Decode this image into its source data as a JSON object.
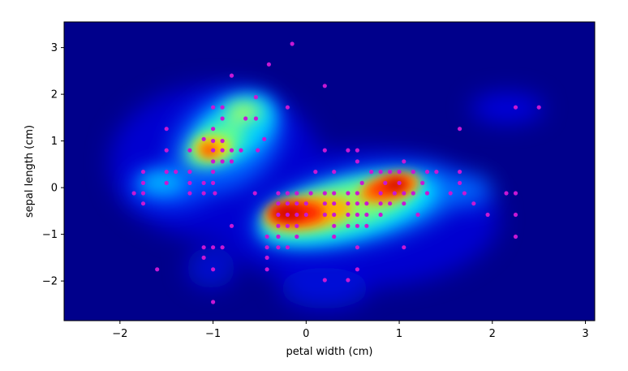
{
  "chart_data": {
    "type": "scatter",
    "title": "",
    "xlabel": "petal width (cm)",
    "ylabel": "sepal length (cm)",
    "xlim": [
      -2.6,
      3.1
    ],
    "ylim": [
      -2.85,
      3.55
    ],
    "xticks": [
      -2,
      -1,
      0,
      1,
      2,
      3
    ],
    "yticks": [
      -2,
      -1,
      0,
      1,
      2,
      3
    ],
    "grid": false,
    "background": "density heatmap (jet colormap)",
    "point_color": "#c718d4",
    "points": [
      [
        -0.15,
        3.08
      ],
      [
        -0.4,
        2.64
      ],
      [
        -0.8,
        2.4
      ],
      [
        0.2,
        2.18
      ],
      [
        -0.54,
        1.94
      ],
      [
        -0.2,
        1.72
      ],
      [
        -1.0,
        1.72
      ],
      [
        -0.9,
        1.72
      ],
      [
        -1.5,
        1.26
      ],
      [
        -1.0,
        1.26
      ],
      [
        -0.65,
        1.48
      ],
      [
        -0.54,
        1.48
      ],
      [
        -0.9,
        1.48
      ],
      [
        -1.0,
        1.0
      ],
      [
        -0.9,
        1.0
      ],
      [
        -1.1,
        1.04
      ],
      [
        -0.45,
        1.04
      ],
      [
        -1.25,
        0.8
      ],
      [
        -1.0,
        0.8
      ],
      [
        -0.9,
        0.8
      ],
      [
        -0.8,
        0.8
      ],
      [
        -0.7,
        0.8
      ],
      [
        -1.5,
        0.8
      ],
      [
        -0.52,
        0.8
      ],
      [
        -1.0,
        0.56
      ],
      [
        -0.9,
        0.56
      ],
      [
        -0.8,
        0.56
      ],
      [
        -1.75,
        0.34
      ],
      [
        -1.5,
        0.34
      ],
      [
        -1.4,
        0.34
      ],
      [
        -1.25,
        0.34
      ],
      [
        -1.0,
        0.34
      ],
      [
        -1.75,
        0.1
      ],
      [
        -1.5,
        0.1
      ],
      [
        -1.25,
        0.1
      ],
      [
        -1.1,
        0.1
      ],
      [
        -1.0,
        0.1
      ],
      [
        -1.85,
        -0.12
      ],
      [
        -1.75,
        -0.12
      ],
      [
        -1.25,
        -0.12
      ],
      [
        -1.1,
        -0.12
      ],
      [
        -0.98,
        -0.12
      ],
      [
        -1.75,
        -0.34
      ],
      [
        -0.8,
        -0.82
      ],
      [
        -0.55,
        -0.12
      ],
      [
        -1.0,
        -1.28
      ],
      [
        -0.9,
        -1.28
      ],
      [
        -1.1,
        -1.28
      ],
      [
        -1.1,
        -1.5
      ],
      [
        -1.0,
        -1.75
      ],
      [
        -1.6,
        -1.75
      ],
      [
        -1.0,
        -2.45
      ],
      [
        -0.3,
        -0.12
      ],
      [
        -0.2,
        -0.12
      ],
      [
        -0.1,
        -0.12
      ],
      [
        0.05,
        -0.12
      ],
      [
        0.2,
        -0.12
      ],
      [
        0.3,
        -0.12
      ],
      [
        0.55,
        -0.12
      ],
      [
        0.8,
        -0.12
      ],
      [
        0.95,
        -0.12
      ],
      [
        1.05,
        -0.12
      ],
      [
        1.15,
        -0.12
      ],
      [
        1.3,
        -0.12
      ],
      [
        1.55,
        -0.12
      ],
      [
        1.7,
        -0.12
      ],
      [
        0.45,
        -0.12
      ],
      [
        0.1,
        0.34
      ],
      [
        0.3,
        0.34
      ],
      [
        0.7,
        0.34
      ],
      [
        0.8,
        0.34
      ],
      [
        0.9,
        0.34
      ],
      [
        1.0,
        0.34
      ],
      [
        1.15,
        0.34
      ],
      [
        1.3,
        0.34
      ],
      [
        1.4,
        0.34
      ],
      [
        0.2,
        0.8
      ],
      [
        0.45,
        0.8
      ],
      [
        0.55,
        0.8
      ],
      [
        0.55,
        0.56
      ],
      [
        1.05,
        0.56
      ],
      [
        0.6,
        0.1
      ],
      [
        0.85,
        0.1
      ],
      [
        1.0,
        0.1
      ],
      [
        1.25,
        0.1
      ],
      [
        1.65,
        0.1
      ],
      [
        1.65,
        0.34
      ],
      [
        1.65,
        1.26
      ],
      [
        -0.3,
        -0.34
      ],
      [
        -0.2,
        -0.34
      ],
      [
        -0.1,
        -0.34
      ],
      [
        0.0,
        -0.34
      ],
      [
        0.2,
        -0.34
      ],
      [
        0.3,
        -0.34
      ],
      [
        0.45,
        -0.34
      ],
      [
        0.55,
        -0.34
      ],
      [
        0.65,
        -0.34
      ],
      [
        0.8,
        -0.34
      ],
      [
        0.9,
        -0.34
      ],
      [
        1.05,
        -0.34
      ],
      [
        1.8,
        -0.34
      ],
      [
        -0.3,
        -0.58
      ],
      [
        -0.2,
        -0.58
      ],
      [
        -0.1,
        -0.58
      ],
      [
        0.0,
        -0.58
      ],
      [
        0.2,
        -0.58
      ],
      [
        0.3,
        -0.58
      ],
      [
        0.45,
        -0.58
      ],
      [
        0.55,
        -0.58
      ],
      [
        0.65,
        -0.58
      ],
      [
        0.8,
        -0.58
      ],
      [
        1.2,
        -0.58
      ],
      [
        1.95,
        -0.58
      ],
      [
        -0.3,
        -0.82
      ],
      [
        -0.2,
        -0.82
      ],
      [
        -0.1,
        -0.82
      ],
      [
        0.3,
        -0.82
      ],
      [
        0.45,
        -0.82
      ],
      [
        0.55,
        -0.82
      ],
      [
        0.65,
        -0.82
      ],
      [
        -0.42,
        -1.05
      ],
      [
        -0.3,
        -1.05
      ],
      [
        -0.1,
        -1.05
      ],
      [
        0.3,
        -1.05
      ],
      [
        -0.42,
        -1.28
      ],
      [
        -0.3,
        -1.28
      ],
      [
        -0.2,
        -1.28
      ],
      [
        0.55,
        -1.28
      ],
      [
        1.05,
        -1.28
      ],
      [
        -0.42,
        -1.5
      ],
      [
        -0.42,
        -1.75
      ],
      [
        0.55,
        -1.75
      ],
      [
        0.2,
        -1.98
      ],
      [
        0.45,
        -1.98
      ],
      [
        2.25,
        1.72
      ],
      [
        2.5,
        1.72
      ],
      [
        2.15,
        -0.12
      ],
      [
        2.25,
        -0.12
      ],
      [
        2.25,
        -0.58
      ],
      [
        2.25,
        -1.05
      ]
    ]
  }
}
